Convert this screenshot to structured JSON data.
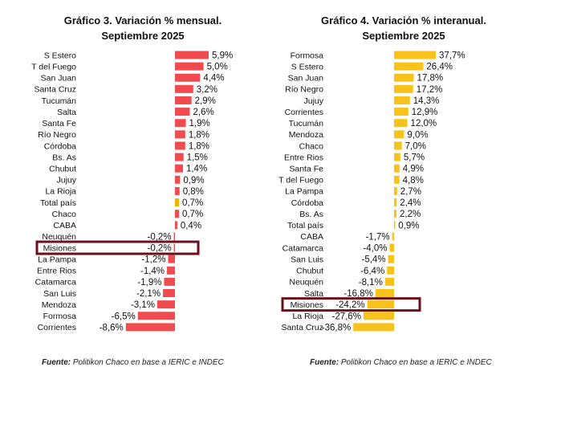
{
  "chart_data": [
    {
      "type": "bar",
      "orientation": "horizontal",
      "title": "Gráfico 3. Variación % mensual.",
      "subtitle": "Septiembre 2025",
      "categories": [
        "S Estero",
        "T del Fuego",
        "San Juan",
        "Santa Cruz",
        "Tucumán",
        "Salta",
        "Santa Fe",
        "Río Negro",
        "Córdoba",
        "Bs. As",
        "Chubut",
        "Jujuy",
        "La Rioja",
        "Total país",
        "Chaco",
        "CABA",
        "Neuquén",
        "Misiones",
        "La Pampa",
        "Entre Rios",
        "Catamarca",
        "San Luis",
        "Mendoza",
        "Formosa",
        "Corrientes"
      ],
      "values": [
        5.9,
        5.0,
        4.4,
        3.2,
        2.9,
        2.6,
        1.9,
        1.8,
        1.8,
        1.5,
        1.4,
        0.9,
        0.8,
        0.7,
        0.7,
        0.4,
        -0.2,
        -0.2,
        -1.2,
        -1.4,
        -1.9,
        -2.1,
        -3.1,
        -6.5,
        -8.6
      ],
      "value_labels": [
        "5,9%",
        "5,0%",
        "4,4%",
        "3,2%",
        "2,9%",
        "2,6%",
        "1,9%",
        "1,8%",
        "1,8%",
        "1,5%",
        "1,4%",
        "0,9%",
        "0,8%",
        "0,7%",
        "0,7%",
        "0,4%",
        "-0,2%",
        "-0,2%",
        "-1,2%",
        "-1,4%",
        "-1,9%",
        "-2,1%",
        "-3,1%",
        "-6,5%",
        "-8,6%"
      ],
      "highlight": "Misiones",
      "special": "Total país",
      "colors": {
        "bar": "#f04b4e",
        "special": "#f3b400",
        "highlight_box": "#6b0f1a"
      },
      "xlim": [
        -8.6,
        5.9
      ]
    },
    {
      "type": "bar",
      "orientation": "horizontal",
      "title": "Gráfico 4. Variación % interanual.",
      "subtitle": "Septiembre 2025",
      "categories": [
        "Formosa",
        "S Estero",
        "San Juan",
        "Río Negro",
        "Jujuy",
        "Corrientes",
        "Tucumán",
        "Mendoza",
        "Chaco",
        "Entre Rios",
        "Santa Fe",
        "T del Fuego",
        "La Pampa",
        "Córdoba",
        "Bs. As",
        "Total país",
        "CABA",
        "Catamarca",
        "San Luis",
        "Chubut",
        "Neuquén",
        "Salta",
        "Misiones",
        "La Rioja",
        "Santa Cruz"
      ],
      "values": [
        37.7,
        26.4,
        17.8,
        17.2,
        14.3,
        12.9,
        12.0,
        9.0,
        7.0,
        5.7,
        4.9,
        4.8,
        2.7,
        2.4,
        2.2,
        0.9,
        -1.7,
        -4.0,
        -5.4,
        -6.4,
        -8.1,
        -16.8,
        -24.2,
        -27.6,
        -36.8
      ],
      "value_labels": [
        "37,7%",
        "26,4%",
        "17,8%",
        "17,2%",
        "14,3%",
        "12,9%",
        "12,0%",
        "9,0%",
        "7,0%",
        "5,7%",
        "4,9%",
        "4,8%",
        "2,7%",
        "2,4%",
        "2,2%",
        "0,9%",
        "-1,7%",
        "-4,0%",
        "-5,4%",
        "-6,4%",
        "-8,1%",
        "-16,8%",
        "-24,2%",
        "-27,6%",
        "-36,8%"
      ],
      "highlight": "Misiones",
      "special": "Total país",
      "colors": {
        "bar": "#f7c21a",
        "special": "#f7c21a",
        "highlight_box": "#6b0f1a"
      },
      "xlim": [
        -36.8,
        37.7
      ]
    }
  ],
  "sources": [
    {
      "label": "Fuente:",
      "text": " Politikon Chaco en base a IERIC e INDEC"
    },
    {
      "label": "Fuente:",
      "text": " Politikon Chaco en base a IERIC e INDEC"
    }
  ]
}
